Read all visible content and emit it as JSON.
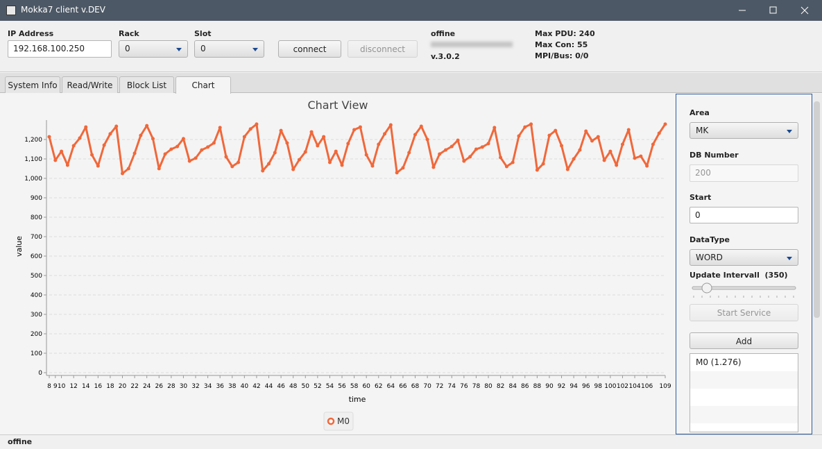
{
  "window": {
    "title": "Mokka7 client v.DEV"
  },
  "toolbar": {
    "ip_label": "IP Address",
    "ip": "192.168.100.250",
    "rack_label": "Rack",
    "rack": "0",
    "slot_label": "Slot",
    "slot": "0",
    "connect": "connect",
    "disconnect": "disconnect",
    "status": "offine",
    "version": "v.3.0.2",
    "max_pdu": "Max PDU: 240",
    "max_con": "Max Con: 55",
    "mpi_bus": "MPI/Bus: 0/0"
  },
  "tabs": [
    "System Info",
    "Read/Write",
    "Block List",
    "Chart"
  ],
  "panel": {
    "area_label": "Area",
    "area": "MK",
    "db_label": "DB Number",
    "db": "200",
    "start_label": "Start",
    "start": "0",
    "type_label": "DataType",
    "type": "WORD",
    "interval_label": "Update Intervall  (350)",
    "start_service": "Start Service",
    "add": "Add",
    "list": [
      "M0 (1.276)"
    ]
  },
  "status_bar": "offine",
  "chart_data": {
    "type": "line",
    "title": "Chart View",
    "xlabel": "time",
    "ylabel": "value",
    "x": [
      8,
      9,
      10,
      11,
      12,
      13,
      14,
      15,
      16,
      17,
      18,
      19,
      20,
      21,
      22,
      23,
      24,
      25,
      26,
      27,
      28,
      29,
      30,
      31,
      32,
      33,
      34,
      35,
      36,
      37,
      38,
      39,
      40,
      41,
      42,
      43,
      44,
      45,
      46,
      47,
      48,
      49,
      50,
      51,
      52,
      53,
      54,
      55,
      56,
      57,
      58,
      59,
      60,
      61,
      62,
      63,
      64,
      65,
      66,
      67,
      68,
      69,
      70,
      71,
      72,
      73,
      74,
      75,
      76,
      77,
      78,
      79,
      80,
      81,
      82,
      83,
      84,
      85,
      86,
      87,
      88,
      89,
      90,
      91,
      92,
      93,
      94,
      95,
      96,
      97,
      98,
      99,
      100,
      101,
      102,
      103,
      104,
      105,
      106,
      107,
      108,
      109
    ],
    "series": [
      {
        "name": "M0",
        "color": "#f0683a",
        "values": [
          1214,
          1093,
          1139,
          1068,
          1168,
          1207,
          1264,
          1121,
          1064,
          1171,
          1229,
          1268,
          1025,
          1050,
          1129,
          1221,
          1271,
          1204,
          1050,
          1125,
          1150,
          1164,
          1204,
          1089,
          1104,
          1146,
          1161,
          1182,
          1261,
          1111,
          1061,
          1082,
          1214,
          1254,
          1279,
          1039,
          1075,
          1132,
          1246,
          1182,
          1046,
          1096,
          1136,
          1239,
          1168,
          1214,
          1082,
          1139,
          1068,
          1179,
          1250,
          1264,
          1121,
          1064,
          1175,
          1229,
          1275,
          1029,
          1054,
          1132,
          1225,
          1268,
          1200,
          1057,
          1125,
          1146,
          1164,
          1196,
          1089,
          1111,
          1150,
          1161,
          1179,
          1261,
          1107,
          1061,
          1082,
          1218,
          1264,
          1279,
          1043,
          1075,
          1221,
          1246,
          1168,
          1046,
          1100,
          1146,
          1243,
          1193,
          1214,
          1093,
          1139,
          1068,
          1175,
          1250,
          1104,
          1114,
          1064,
          1175,
          1232,
          1279
        ]
      }
    ],
    "xlim": [
      8,
      109
    ],
    "xticks": [
      8,
      9,
      10,
      12,
      14,
      16,
      18,
      20,
      22,
      24,
      26,
      28,
      30,
      32,
      34,
      36,
      38,
      40,
      42,
      44,
      46,
      48,
      50,
      52,
      54,
      56,
      58,
      60,
      62,
      64,
      66,
      68,
      70,
      72,
      74,
      76,
      78,
      80,
      82,
      84,
      86,
      88,
      90,
      92,
      94,
      96,
      98,
      100,
      102,
      104,
      106,
      109
    ],
    "ylim": [
      0,
      1300
    ],
    "yticks": [
      0,
      100,
      200,
      300,
      400,
      500,
      600,
      700,
      800,
      900,
      {
        "value": 1000,
        "label": "1,000"
      },
      {
        "value": 1100,
        "label": "1,100"
      },
      {
        "value": 1200,
        "label": "1,200"
      }
    ],
    "grid": true,
    "legend": "bottom"
  }
}
